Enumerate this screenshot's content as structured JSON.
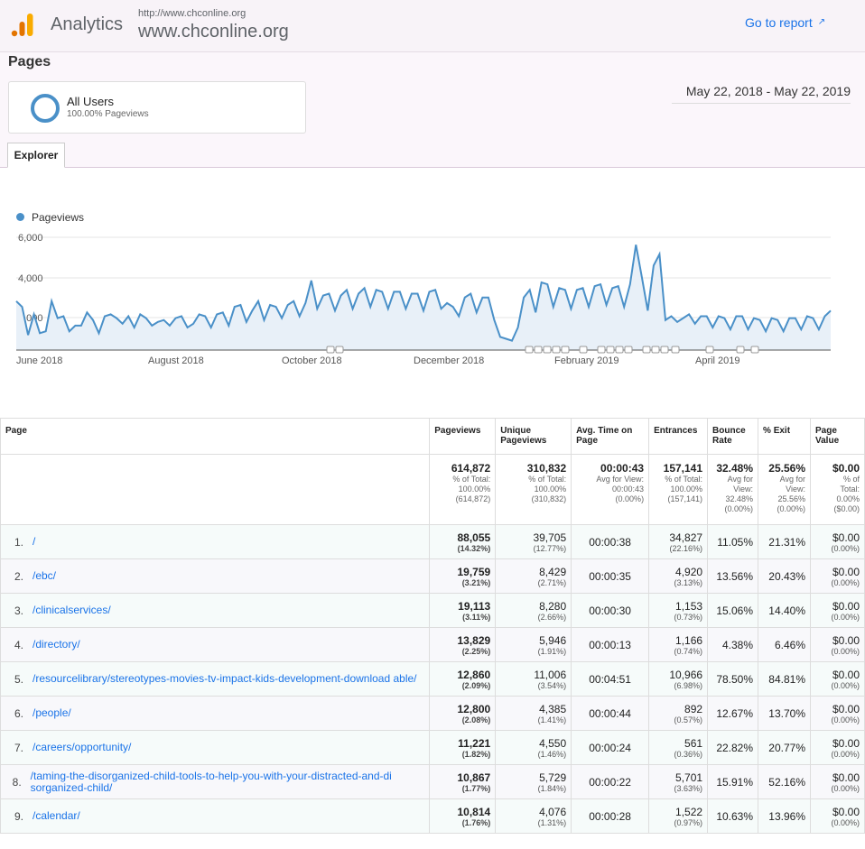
{
  "header": {
    "brand": "Analytics",
    "property_url": "http://www.chconline.org",
    "property_name": "www.chconline.org",
    "goto_report": "Go to report"
  },
  "page_title": "Pages",
  "segment": {
    "name": "All Users",
    "sub": "100.00% Pageviews"
  },
  "date_range": "May 22, 2018 - May 22, 2019",
  "tab": "Explorer",
  "chart": {
    "legend": "Pageviews",
    "color": "#4a90c8",
    "y_ticks": [
      "6,000",
      "4,000",
      "2,000"
    ],
    "x_ticks": [
      "June 2018",
      "August 2018",
      "October 2018",
      "December 2018",
      "February 2019",
      "April 2019"
    ]
  },
  "chart_data": {
    "type": "area",
    "series": [
      {
        "name": "Pageviews",
        "values": [
          2600,
          2300,
          800,
          1900,
          900,
          1000,
          2600,
          1700,
          1800,
          1000,
          1300,
          1300,
          2000,
          1600,
          900,
          1800,
          1900,
          1700,
          1400,
          1800,
          1200,
          1900,
          1700,
          1300,
          1500,
          1600,
          1300,
          1700,
          1800,
          1200,
          1400,
          1900,
          1800,
          1200,
          1900,
          2000,
          1300,
          2300,
          2400,
          1500,
          2100,
          2600,
          1600,
          2400,
          2300,
          1700,
          2400,
          2600,
          1800,
          2500,
          3700,
          2200,
          2900,
          3000,
          2100,
          2900,
          3200,
          2200,
          3000,
          3300,
          2300,
          3200,
          3100,
          2200,
          3100,
          3100,
          2200,
          3000,
          3000,
          2100,
          3100,
          3200,
          2200,
          2500,
          2300,
          1800,
          2800,
          3000,
          2000,
          2800,
          2800,
          1600,
          700,
          600,
          500,
          1200,
          2800,
          3200,
          2000,
          3600,
          3500,
          2300,
          3300,
          3200,
          2200,
          3200,
          3300,
          2300,
          3400,
          3500,
          2400,
          3300,
          3400,
          2300,
          3500,
          5600,
          3900,
          2100,
          4500,
          5100,
          1600,
          1800,
          1500,
          1700,
          1900,
          1400,
          1800,
          1800,
          1200,
          1800,
          1700,
          1100,
          1800,
          1800,
          1100,
          1700,
          1600,
          1000,
          1700,
          1600,
          1000,
          1700,
          1700,
          1100,
          1800,
          1700,
          1100,
          1800,
          2100
        ]
      }
    ],
    "ylim": [
      0,
      6000
    ],
    "y_ticks": [
      2000,
      4000,
      6000
    ],
    "x_tick_labels": [
      "June 2018",
      "August 2018",
      "October 2018",
      "December 2018",
      "February 2019",
      "April 2019"
    ],
    "grid": true,
    "legend": "top-left"
  },
  "table": {
    "headers": [
      "Page",
      "Pageviews",
      "Unique Pageviews",
      "Avg. Time on Page",
      "Entrances",
      "Bounce Rate",
      "% Exit",
      "Page Value"
    ],
    "totals": [
      {
        "value": "614,872",
        "sub": [
          "% of Total:",
          "100.00%",
          "(614,872)"
        ]
      },
      {
        "value": "310,832",
        "sub": [
          "% of Total:",
          "100.00%",
          "(310,832)"
        ]
      },
      {
        "value": "00:00:43",
        "sub": [
          "Avg for View:",
          "00:00:43",
          "(0.00%)"
        ]
      },
      {
        "value": "157,141",
        "sub": [
          "% of Total:",
          "100.00%",
          "(157,141)"
        ]
      },
      {
        "value": "32.48%",
        "sub": [
          "Avg for",
          "View:",
          "32.48%",
          "(0.00%)"
        ]
      },
      {
        "value": "25.56%",
        "sub": [
          "Avg for",
          "View:",
          "25.56%",
          "(0.00%)"
        ]
      },
      {
        "value": "$0.00",
        "sub": [
          "% of",
          "Total:",
          "0.00%",
          "($0.00)"
        ]
      }
    ],
    "rows": [
      {
        "idx": "1.",
        "page": "/",
        "pv": "88,055",
        "pv_pct": "(14.32%)",
        "upv": "39,705",
        "upv_pct": "(12.77%)",
        "time": "00:00:38",
        "ent": "34,827",
        "ent_pct": "(22.16%)",
        "bounce": "11.05%",
        "exit": "21.31%",
        "value": "$0.00",
        "value_pct": "(0.00%)"
      },
      {
        "idx": "2.",
        "page": "/ebc/",
        "pv": "19,759",
        "pv_pct": "(3.21%)",
        "upv": "8,429",
        "upv_pct": "(2.71%)",
        "time": "00:00:35",
        "ent": "4,920",
        "ent_pct": "(3.13%)",
        "bounce": "13.56%",
        "exit": "20.43%",
        "value": "$0.00",
        "value_pct": "(0.00%)"
      },
      {
        "idx": "3.",
        "page": "/clinicalservices/",
        "pv": "19,113",
        "pv_pct": "(3.11%)",
        "upv": "8,280",
        "upv_pct": "(2.66%)",
        "time": "00:00:30",
        "ent": "1,153",
        "ent_pct": "(0.73%)",
        "bounce": "15.06%",
        "exit": "14.40%",
        "value": "$0.00",
        "value_pct": "(0.00%)"
      },
      {
        "idx": "4.",
        "page": "/directory/",
        "pv": "13,829",
        "pv_pct": "(2.25%)",
        "upv": "5,946",
        "upv_pct": "(1.91%)",
        "time": "00:00:13",
        "ent": "1,166",
        "ent_pct": "(0.74%)",
        "bounce": "4.38%",
        "exit": "6.46%",
        "value": "$0.00",
        "value_pct": "(0.00%)"
      },
      {
        "idx": "5.",
        "page": "/resourcelibrary/stereotypes-movies-tv-impact-kids-development-download able/",
        "pv": "12,860",
        "pv_pct": "(2.09%)",
        "upv": "11,006",
        "upv_pct": "(3.54%)",
        "time": "00:04:51",
        "ent": "10,966",
        "ent_pct": "(6.98%)",
        "bounce": "78.50%",
        "exit": "84.81%",
        "value": "$0.00",
        "value_pct": "(0.00%)"
      },
      {
        "idx": "6.",
        "page": "/people/",
        "pv": "12,800",
        "pv_pct": "(2.08%)",
        "upv": "4,385",
        "upv_pct": "(1.41%)",
        "time": "00:00:44",
        "ent": "892",
        "ent_pct": "(0.57%)",
        "bounce": "12.67%",
        "exit": "13.70%",
        "value": "$0.00",
        "value_pct": "(0.00%)"
      },
      {
        "idx": "7.",
        "page": "/careers/opportunity/",
        "pv": "11,221",
        "pv_pct": "(1.82%)",
        "upv": "4,550",
        "upv_pct": "(1.46%)",
        "time": "00:00:24",
        "ent": "561",
        "ent_pct": "(0.36%)",
        "bounce": "22.82%",
        "exit": "20.77%",
        "value": "$0.00",
        "value_pct": "(0.00%)"
      },
      {
        "idx": "8.",
        "page": "/taming-the-disorganized-child-tools-to-help-you-with-your-distracted-and-di sorganized-child/",
        "pv": "10,867",
        "pv_pct": "(1.77%)",
        "upv": "5,729",
        "upv_pct": "(1.84%)",
        "time": "00:00:22",
        "ent": "5,701",
        "ent_pct": "(3.63%)",
        "bounce": "15.91%",
        "exit": "52.16%",
        "value": "$0.00",
        "value_pct": "(0.00%)"
      },
      {
        "idx": "9.",
        "page": "/calendar/",
        "pv": "10,814",
        "pv_pct": "(1.76%)",
        "upv": "4,076",
        "upv_pct": "(1.31%)",
        "time": "00:00:28",
        "ent": "1,522",
        "ent_pct": "(0.97%)",
        "bounce": "10.63%",
        "exit": "13.96%",
        "value": "$0.00",
        "value_pct": "(0.00%)"
      }
    ]
  }
}
